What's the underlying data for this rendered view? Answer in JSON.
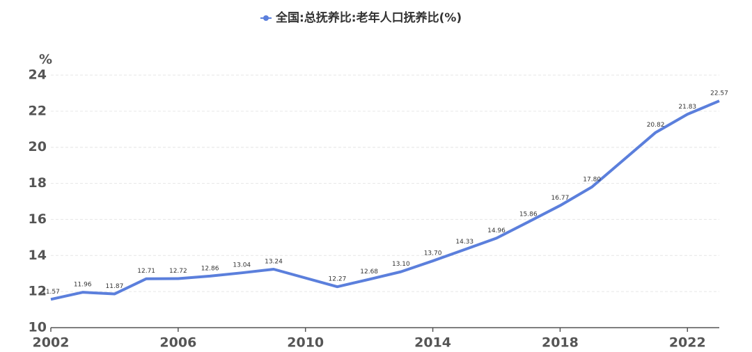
{
  "chart_data": {
    "type": "line",
    "series": [
      {
        "name": "全国:总抚养比:老年人口抚养比(%)",
        "color": "#5b7fdc",
        "x": [
          2002,
          2003,
          2004,
          2005,
          2006,
          2007,
          2008,
          2009,
          2011,
          2012,
          2013,
          2014,
          2015,
          2016,
          2017,
          2018,
          2019,
          2021,
          2022,
          2023
        ],
        "values": [
          11.57,
          11.96,
          11.87,
          12.71,
          12.72,
          12.86,
          13.04,
          13.24,
          12.27,
          12.68,
          13.1,
          13.7,
          14.33,
          14.96,
          15.86,
          16.77,
          17.8,
          20.82,
          21.83,
          22.57
        ],
        "value_labels": [
          "11.57",
          "11.96",
          "11.87",
          "12.71",
          "12.72",
          "12.86",
          "13.04",
          "13.24",
          "12.27",
          "12.68",
          "13.10",
          "13.70",
          "14.33",
          "14.96",
          "15.86",
          "16.77",
          "17.80",
          "20.82",
          "21.83",
          "22.57"
        ]
      }
    ],
    "y_label": "%",
    "xlim": [
      2002,
      2023
    ],
    "xticks": [
      2002,
      2006,
      2010,
      2014,
      2018,
      2022
    ],
    "ylim": [
      10,
      24
    ],
    "yticks": [
      10,
      12,
      14,
      16,
      18,
      20,
      22,
      24
    ],
    "grid": true,
    "legend": "top"
  }
}
